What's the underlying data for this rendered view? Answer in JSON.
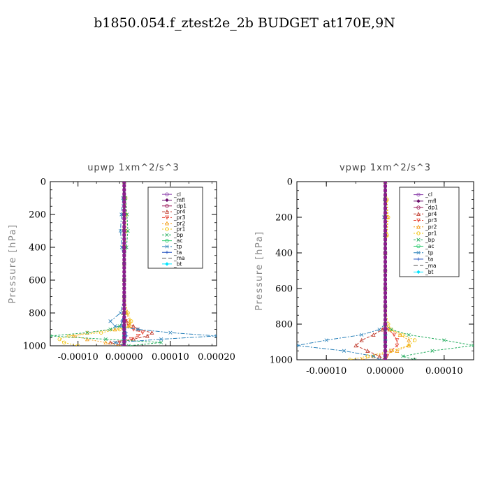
{
  "title": "b1850.054.f_ztest2e_2b  BUDGET at170E,9N",
  "chart_data": [
    {
      "type": "line",
      "title": "upwp   1xm^2/s^3",
      "ylabel": "Pressure [hPa]",
      "xlim": [
        -0.00016,
        0.0002
      ],
      "ylim": [
        1000,
        0
      ],
      "y_inverted": true,
      "xticks": [
        "-0.00010",
        "0.00000",
        "0.00010",
        "0.00020"
      ],
      "xtick_values": [
        -0.0001,
        0.0,
        0.0001,
        0.0002
      ],
      "yticks": [
        "0",
        "200",
        "400",
        "600",
        "800",
        "1000"
      ],
      "ytick_values": [
        0,
        200,
        400,
        600,
        800,
        1000
      ],
      "legend_position": "top-right",
      "y": [
        0,
        100,
        200,
        300,
        400,
        500,
        600,
        700,
        800,
        850,
        880,
        900,
        920,
        940,
        960,
        980,
        1000
      ],
      "series": [
        {
          "name": "_cl",
          "color": "#8e44ad",
          "values": [
            0,
            0,
            0,
            0,
            0,
            0,
            0,
            0,
            0,
            0,
            0,
            0,
            0,
            0,
            0,
            0,
            0
          ]
        },
        {
          "name": "_mfl",
          "color": "#6a0d6a",
          "values": [
            0,
            0,
            0,
            0,
            0,
            0,
            0,
            0,
            0,
            0,
            0,
            0,
            0,
            0,
            0,
            0,
            0
          ]
        },
        {
          "name": "_dp1",
          "color": "#9b1b5a",
          "values": [
            0,
            0,
            0,
            0,
            0,
            0,
            0,
            0,
            0,
            0,
            0,
            0,
            0,
            0,
            0,
            0,
            0
          ]
        },
        {
          "name": "_pr4",
          "color": "#c0392b",
          "values": [
            0,
            0,
            1e-06,
            1e-06,
            0,
            0,
            0,
            0,
            -2e-06,
            5e-06,
            2e-05,
            3e-05,
            6e-05,
            5e-05,
            2e-05,
            -3e-05,
            -5e-06
          ]
        },
        {
          "name": "_pr3",
          "color": "#e74c3c",
          "values": [
            0,
            0,
            0,
            0,
            0,
            0,
            0,
            0,
            0,
            3e-06,
            1e-05,
            2e-05,
            4e-05,
            3e-05,
            1.5e-05,
            -1e-05,
            -3e-06
          ]
        },
        {
          "name": "_pr2",
          "color": "#f39c12",
          "values": [
            0,
            0,
            2e-06,
            2e-06,
            0,
            0,
            0,
            0,
            5e-06,
            1.2e-05,
            1e-05,
            -2e-05,
            -8e-05,
            -0.00011,
            -8e-05,
            -4e-05,
            -1e-05
          ]
        },
        {
          "name": "_pr1",
          "color": "#f1c40f",
          "values": [
            0,
            3e-06,
            4e-06,
            4e-06,
            2e-06,
            0,
            0,
            0,
            8e-06,
            1.5e-05,
            1.2e-05,
            -1e-05,
            -5e-05,
            -0.00012,
            -0.00014,
            -0.00013,
            -0.0001
          ]
        },
        {
          "name": "_bp",
          "color": "#27ae60",
          "values": [
            0,
            3e-06,
            6e-06,
            8e-06,
            5e-06,
            0,
            0,
            0,
            0,
            -3e-06,
            -1e-05,
            -3e-05,
            -8e-05,
            -0.00016,
            -4e-05,
            8e-05,
            1e-05
          ]
        },
        {
          "name": "_ac",
          "color": "#2ecc71",
          "values": [
            0,
            0,
            0,
            0,
            0,
            0,
            0,
            0,
            0,
            0,
            0,
            0,
            0,
            0,
            0,
            0,
            0
          ]
        },
        {
          "name": "_tp",
          "color": "#2980b9",
          "values": [
            0,
            -3e-06,
            -6e-06,
            -8e-06,
            -5e-06,
            0,
            0,
            0,
            -8e-06,
            -3e-05,
            -2e-05,
            3e-05,
            0.0001,
            0.0002,
            8e-05,
            -2e-05,
            -2e-06
          ]
        },
        {
          "name": "_ta",
          "color": "#1f4fbf",
          "values": [
            0,
            0,
            0,
            0,
            0,
            0,
            0,
            0,
            0,
            -5e-06,
            -5e-06,
            0,
            4e-06,
            5e-06,
            2e-06,
            0,
            0
          ]
        },
        {
          "name": "_ma",
          "color": "#555555",
          "values": [
            0,
            0,
            0,
            0,
            0,
            0,
            0,
            0,
            0,
            0,
            0,
            0,
            0,
            0,
            0,
            0,
            0
          ]
        },
        {
          "name": "_bt",
          "color": "#00e5ff",
          "values": [
            0,
            0,
            0,
            0,
            0,
            0,
            0,
            0,
            0,
            0,
            0,
            0,
            0,
            0,
            0,
            0,
            0
          ]
        }
      ]
    },
    {
      "type": "line",
      "title": "vpwp   1xm^2/s^3",
      "ylabel": "Pressure [hPa]",
      "xlim": [
        -0.00015,
        0.00015
      ],
      "ylim": [
        1000,
        0
      ],
      "y_inverted": true,
      "xticks": [
        "-0.00010",
        "0.00000",
        "0.00010"
      ],
      "xtick_values": [
        -0.0001,
        0.0,
        0.0001
      ],
      "yticks": [
        "0",
        "200",
        "400",
        "600",
        "800",
        "1000"
      ],
      "ytick_values": [
        0,
        200,
        400,
        600,
        800,
        1000
      ],
      "legend_position": "top-right",
      "y": [
        0,
        100,
        200,
        300,
        400,
        500,
        600,
        700,
        800,
        830,
        860,
        890,
        920,
        950,
        980,
        1000
      ],
      "series": [
        {
          "name": "_cl",
          "color": "#8e44ad",
          "values": [
            0,
            0,
            0,
            0,
            0,
            0,
            0,
            0,
            0,
            0,
            0,
            0,
            0,
            0,
            0,
            0
          ]
        },
        {
          "name": "_mfl",
          "color": "#6a0d6a",
          "values": [
            0,
            0,
            0,
            0,
            0,
            0,
            0,
            0,
            0,
            0,
            0,
            0,
            0,
            0,
            0,
            0
          ]
        },
        {
          "name": "_dp1",
          "color": "#9b1b5a",
          "values": [
            0,
            0,
            0,
            0,
            0,
            0,
            0,
            0,
            0,
            0,
            0,
            0,
            0,
            0,
            0,
            0
          ]
        },
        {
          "name": "_pr4",
          "color": "#c0392b",
          "values": [
            0,
            0,
            0,
            0,
            0,
            0,
            0,
            0,
            0,
            -5e-06,
            -2e-05,
            -4e-05,
            -5e-05,
            -3e-05,
            -1e-05,
            0
          ]
        },
        {
          "name": "_pr3",
          "color": "#e74c3c",
          "values": [
            0,
            0,
            0,
            0,
            0,
            0,
            0,
            0,
            0,
            5e-06,
            1.5e-05,
            2e-05,
            2e-05,
            1e-05,
            3e-06,
            0
          ]
        },
        {
          "name": "_pr2",
          "color": "#f39c12",
          "values": [
            0,
            2e-06,
            4e-06,
            2e-06,
            0,
            0,
            0,
            0,
            0,
            8e-06,
            2.5e-05,
            4e-05,
            4e-05,
            2e-05,
            -2e-05,
            -4e-05
          ]
        },
        {
          "name": "_pr1",
          "color": "#f1c40f",
          "values": [
            0,
            3e-06,
            5e-06,
            3e-06,
            0,
            0,
            0,
            0,
            5e-06,
            1e-05,
            3e-05,
            5e-05,
            4e-05,
            1e-05,
            -3e-05,
            -6e-05
          ]
        },
        {
          "name": "_bp",
          "color": "#27ae60",
          "values": [
            0,
            -1e-06,
            -2e-06,
            -1e-06,
            0,
            0,
            0,
            0,
            0,
            1e-05,
            4e-05,
            0.0001,
            0.00015,
            8e-05,
            3e-05,
            5e-05
          ]
        },
        {
          "name": "_ac",
          "color": "#2ecc71",
          "values": [
            0,
            0,
            0,
            0,
            0,
            0,
            0,
            0,
            0,
            0,
            0,
            0,
            0,
            0,
            0,
            0
          ]
        },
        {
          "name": "_tp",
          "color": "#2980b9",
          "values": [
            0,
            -1e-06,
            -2e-06,
            -1e-06,
            0,
            0,
            0,
            0,
            0,
            -1e-05,
            -4e-05,
            -0.0001,
            -0.00015,
            -7e-05,
            -2e-05,
            -1e-05
          ]
        },
        {
          "name": "_ta",
          "color": "#1f4fbf",
          "values": [
            0,
            0,
            0,
            0,
            0,
            0,
            0,
            0,
            0,
            0,
            0,
            0,
            0,
            0,
            0,
            0
          ]
        },
        {
          "name": "_ma",
          "color": "#555555",
          "values": [
            0,
            0,
            0,
            0,
            0,
            0,
            0,
            0,
            0,
            0,
            0,
            0,
            0,
            0,
            0,
            0
          ]
        },
        {
          "name": "_bt",
          "color": "#00e5ff",
          "values": [
            0,
            0,
            0,
            0,
            0,
            0,
            0,
            0,
            0,
            0,
            0,
            0,
            0,
            0,
            0,
            0
          ]
        }
      ]
    }
  ]
}
